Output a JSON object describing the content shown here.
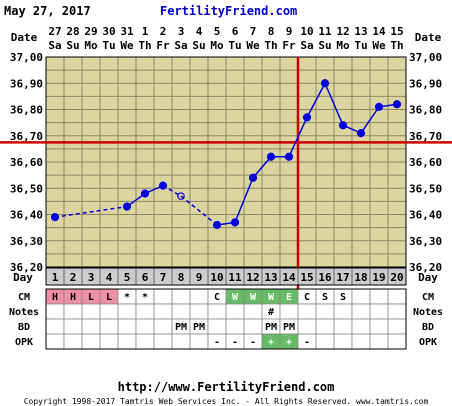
{
  "header": {
    "date": "May 27, 2017",
    "brand": "FertilityFriend.com"
  },
  "footer": {
    "url": "http://www.FertilityFriend.com",
    "copyright": "Copyright 1998-2017 Tamtris Web Services Inc. - All Rights Reserved. www.tamtris.com"
  },
  "colors": {
    "background": "#dcd5a0",
    "grid": "#888866",
    "line": "#0000dd",
    "coverline": "#cc0000",
    "red_cell": "#f08fa8",
    "green_cell": "#66bb66",
    "white_cell": "#ffffff"
  },
  "chart_data": {
    "type": "line",
    "title": "",
    "ylabel": "",
    "xlabel": "Day",
    "ylim": [
      36.2,
      37.0
    ],
    "y_ticks": [
      "37,00",
      "36,90",
      "36,80",
      "36,70",
      "36,60",
      "36,50",
      "36,40",
      "36,30",
      "36,20"
    ],
    "date_row_label": "Date",
    "dates": [
      "27",
      "28",
      "29",
      "30",
      "31",
      "1",
      "2",
      "3",
      "4",
      "5",
      "6",
      "7",
      "8",
      "9",
      "10",
      "11",
      "12",
      "13",
      "14",
      "15"
    ],
    "weekdays": [
      "Sa",
      "Su",
      "Mo",
      "Tu",
      "We",
      "Th",
      "Fr",
      "Sa",
      "Su",
      "Mo",
      "Tu",
      "We",
      "Th",
      "Fr",
      "Sa",
      "Su",
      "Mo",
      "Tu",
      "We",
      "Th"
    ],
    "days": [
      "1",
      "2",
      "3",
      "4",
      "5",
      "6",
      "7",
      "8",
      "9",
      "10",
      "11",
      "12",
      "13",
      "14",
      "15",
      "16",
      "17",
      "18",
      "19",
      "20"
    ],
    "temps": [
      36.39,
      null,
      null,
      null,
      36.43,
      36.48,
      36.51,
      36.47,
      null,
      36.36,
      36.37,
      36.54,
      36.62,
      36.62,
      36.77,
      36.9,
      36.74,
      36.71,
      36.81,
      36.82
    ],
    "open_point_days": [
      8
    ],
    "coverline": 36.675,
    "ovulation_day": 14,
    "rows": [
      {
        "label": "CM",
        "cells": [
          "H",
          "H",
          "L",
          "L",
          "*",
          "*",
          "",
          "",
          "",
          "C",
          "W",
          "W",
          "W",
          "E",
          "C",
          "S",
          "S",
          "",
          "",
          ""
        ],
        "colors": [
          "red",
          "red",
          "red",
          "red",
          "",
          "",
          "",
          "",
          "",
          "",
          "green",
          "green",
          "green",
          "green",
          "",
          "",
          "",
          "",
          "",
          ""
        ]
      },
      {
        "label": "Notes",
        "cells": [
          "",
          "",
          "",
          "",
          "",
          "",
          "",
          "",
          "",
          "",
          "",
          "",
          "#",
          "",
          "",
          "",
          "",
          "",
          "",
          ""
        ],
        "colors": []
      },
      {
        "label": "BD",
        "cells": [
          "",
          "",
          "",
          "",
          "",
          "",
          "",
          "PM",
          "PM",
          "",
          "",
          "",
          "PM",
          "PM",
          "",
          "",
          "",
          "",
          "",
          ""
        ],
        "colors": []
      },
      {
        "label": "OPK",
        "cells": [
          "",
          "",
          "",
          "",
          "",
          "",
          "",
          "",
          "",
          "-",
          "-",
          "-",
          "+",
          "+",
          "-",
          "",
          "",
          "",
          "",
          ""
        ],
        "colors": [
          "",
          "",
          "",
          "",
          "",
          "",
          "",
          "",
          "",
          "",
          "",
          "",
          "green",
          "green",
          "",
          "",
          "",
          "",
          "",
          ""
        ]
      }
    ]
  }
}
